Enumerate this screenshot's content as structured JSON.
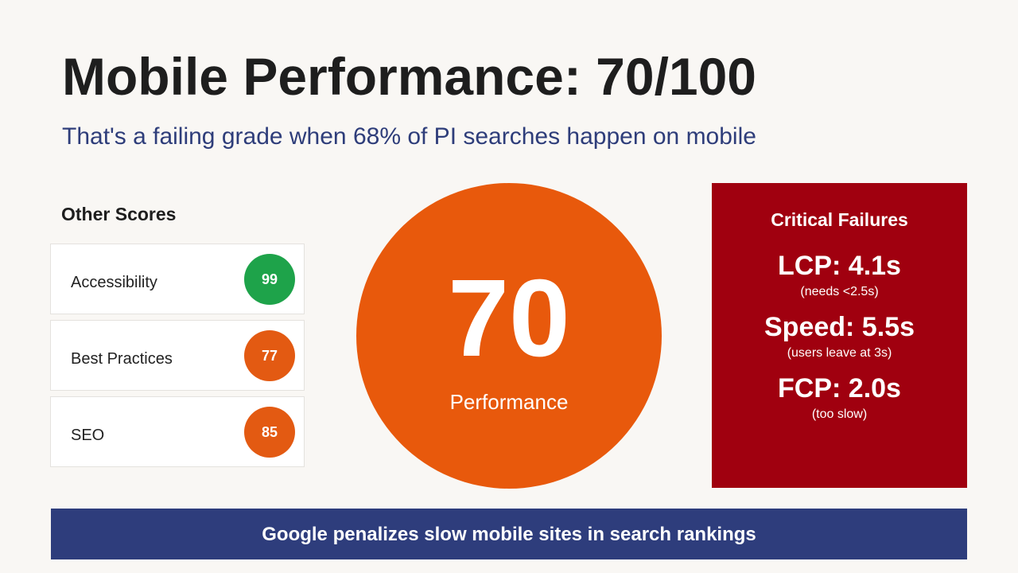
{
  "header": {
    "title": "Mobile Performance: 70/100",
    "subtitle": "That's a failing grade when 68% of PI searches happen on mobile"
  },
  "other_scores": {
    "heading": "Other Scores",
    "items": [
      {
        "label": "Accessibility",
        "score": 99,
        "color": "#1ea34a"
      },
      {
        "label": "Best Practices",
        "score": 77,
        "color": "#e35a12"
      },
      {
        "label": "SEO",
        "score": 85,
        "color": "#e35a12"
      }
    ]
  },
  "main_score": {
    "score": 70,
    "label": "Performance"
  },
  "critical_failures": {
    "heading": "Critical Failures",
    "items": [
      {
        "metric": "LCP: 4.1s",
        "note": "(needs <2.5s)"
      },
      {
        "metric": "Speed: 5.5s",
        "note": "(users leave at 3s)"
      },
      {
        "metric": "FCP: 2.0s",
        "note": "(too slow)"
      }
    ]
  },
  "banner": {
    "text": "Google penalizes slow mobile sites in search rankings"
  }
}
